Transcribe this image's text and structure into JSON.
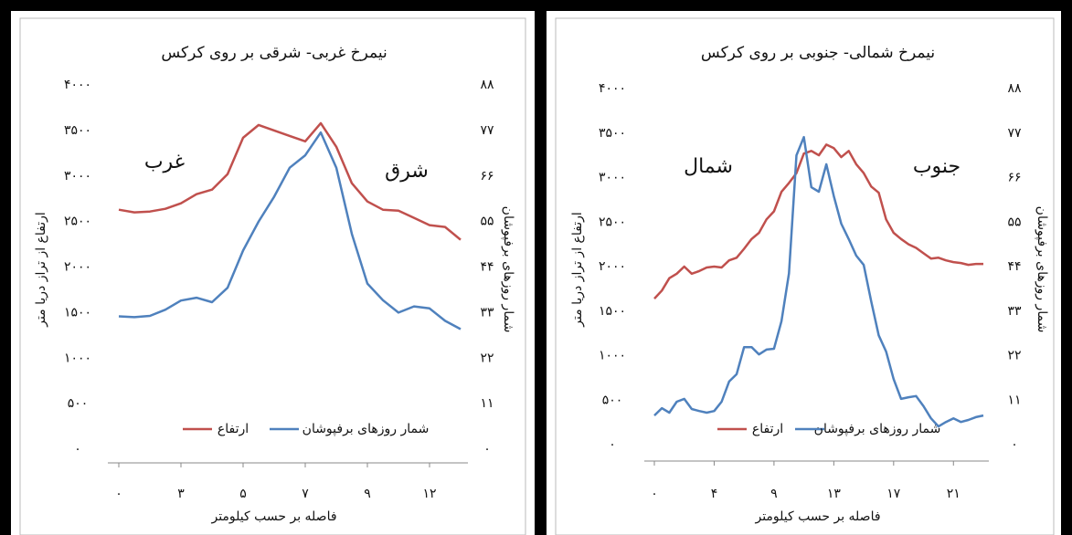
{
  "chart_data": [
    {
      "type": "line",
      "title": "نیمرخ غربی- شرقی بر روی کرکس",
      "x_label": "فاصله بر حسب کیلومتر",
      "y_label": "ارتفاع از تراز دریا متر",
      "y2_label": "شمار روزهای برفپوشان",
      "annotations": [
        "غرب",
        "شرق"
      ],
      "categories": [
        "۰",
        null,
        null,
        null,
        "۳",
        null,
        null,
        null,
        "۵",
        null,
        null,
        null,
        "۷",
        null,
        null,
        null,
        "۹",
        null,
        null,
        null,
        "۱۲",
        null,
        null
      ],
      "series": [
        {
          "name": "ارتفاع",
          "color": "#c0504d",
          "values": [
            2630,
            2600,
            2610,
            2640,
            2700,
            2800,
            2850,
            3020,
            3420,
            3560,
            3500,
            3440,
            3380,
            3580,
            3320,
            2920,
            2720,
            2630,
            2620,
            2540,
            2460,
            2440,
            2300
          ]
        },
        {
          "name": "شمار روزهای برفپوشان",
          "color": "#4f81bd",
          "axis": "y2",
          "values": [
            32.1,
            31.9,
            32.2,
            33.7,
            35.9,
            36.6,
            35.5,
            39,
            48,
            55,
            61,
            68,
            71,
            76.5,
            68,
            52,
            40,
            36,
            33,
            34.5,
            34,
            31,
            29
          ]
        }
      ],
      "ylim": [
        0,
        4000
      ],
      "yticks": [
        {
          "value": 0,
          "label": "۰"
        },
        {
          "value": 500,
          "label": "۵۰۰"
        },
        {
          "value": 1000,
          "label": "۱۰۰۰"
        },
        {
          "value": 1500,
          "label": "۱۵۰۰"
        },
        {
          "value": 2000,
          "label": "۲۰۰۰"
        },
        {
          "value": 2500,
          "label": "۲۵۰۰"
        },
        {
          "value": 3000,
          "label": "۳۰۰۰"
        },
        {
          "value": 3500,
          "label": "۳۵۰۰"
        },
        {
          "value": 4000,
          "label": "۴۰۰۰"
        }
      ],
      "y2lim": [
        0,
        88
      ],
      "y2ticks": [
        {
          "value": 0,
          "label": "۰"
        },
        {
          "value": 11,
          "label": "۱۱"
        },
        {
          "value": 22,
          "label": "۲۲"
        },
        {
          "value": 33,
          "label": "۳۳"
        },
        {
          "value": 44,
          "label": "۴۴"
        },
        {
          "value": 55,
          "label": "۵۵"
        },
        {
          "value": 66,
          "label": "۶۶"
        },
        {
          "value": 77,
          "label": "۷۷"
        },
        {
          "value": 88,
          "label": "۸۸"
        }
      ],
      "legend": "bottom"
    },
    {
      "type": "line",
      "title": "نیمرخ شمالی- جنوبی بر روی کرکس",
      "x_label": "فاصله بر حسب کیلومتر",
      "y_label": "ارتفاع از تراز دریا متر",
      "y2_label": "شمار روزهای برفپوشان",
      "annotations": [
        "شمال",
        "جنوب"
      ],
      "categories": [
        "۰",
        null,
        null,
        null,
        null,
        null,
        null,
        null,
        "۴",
        null,
        null,
        null,
        null,
        null,
        null,
        null,
        "۹",
        null,
        null,
        null,
        null,
        null,
        null,
        null,
        "۱۳",
        null,
        null,
        null,
        null,
        null,
        null,
        null,
        "۱۷",
        null,
        null,
        null,
        null,
        null,
        null,
        null,
        "۲۱",
        null,
        null,
        null,
        null
      ],
      "series": [
        {
          "name": "ارتفاع",
          "color": "#c0504d",
          "values": [
            1640,
            1730,
            1870,
            1920,
            2000,
            1920,
            1950,
            1990,
            2000,
            1990,
            2070,
            2100,
            2200,
            2310,
            2380,
            2530,
            2620,
            2840,
            2940,
            3050,
            3270,
            3300,
            3250,
            3370,
            3330,
            3230,
            3300,
            3150,
            3050,
            2900,
            2830,
            2530,
            2380,
            2310,
            2250,
            2210,
            2150,
            2090,
            2100,
            2070,
            2050,
            2040,
            2020,
            2030,
            2030
          ]
        },
        {
          "name": "شمار روزهای برفپوشان",
          "color": "#4f81bd",
          "axis": "y2",
          "values": [
            7.2,
            9,
            7.9,
            10.6,
            11.3,
            8.8,
            8.3,
            7.9,
            8.3,
            10.6,
            15.6,
            17.4,
            24.1,
            24.1,
            22.3,
            23.5,
            23.7,
            30.5,
            42.3,
            71.5,
            76,
            63.6,
            62.5,
            69.3,
            61.4,
            54.6,
            50.8,
            46.7,
            44.4,
            35.4,
            27,
            23,
            16.2,
            11.3,
            11.7,
            12,
            9.5,
            6.5,
            4.5,
            5.6,
            6.5,
            5.6,
            6.1,
            6.8,
            7.2
          ]
        }
      ],
      "ylim": [
        0,
        4000
      ],
      "yticks": [
        {
          "value": 0,
          "label": "۰"
        },
        {
          "value": 500,
          "label": "۵۰۰"
        },
        {
          "value": 1000,
          "label": "۱۰۰۰"
        },
        {
          "value": 1500,
          "label": "۱۵۰۰"
        },
        {
          "value": 2000,
          "label": "۲۰۰۰"
        },
        {
          "value": 2500,
          "label": "۲۵۰۰"
        },
        {
          "value": 3000,
          "label": "۳۰۰۰"
        },
        {
          "value": 3500,
          "label": "۳۵۰۰"
        },
        {
          "value": 4000,
          "label": "۴۰۰۰"
        }
      ],
      "y2lim": [
        0,
        88
      ],
      "y2ticks": [
        {
          "value": 0,
          "label": "۰"
        },
        {
          "value": 11,
          "label": "۱۱"
        },
        {
          "value": 22,
          "label": "۲۲"
        },
        {
          "value": 33,
          "label": "۳۳"
        },
        {
          "value": 44,
          "label": "۴۴"
        },
        {
          "value": 55,
          "label": "۵۵"
        },
        {
          "value": 66,
          "label": "۶۶"
        },
        {
          "value": 77,
          "label": "۷۷"
        },
        {
          "value": 88,
          "label": "۸۸"
        }
      ],
      "legend": "bottom"
    }
  ]
}
